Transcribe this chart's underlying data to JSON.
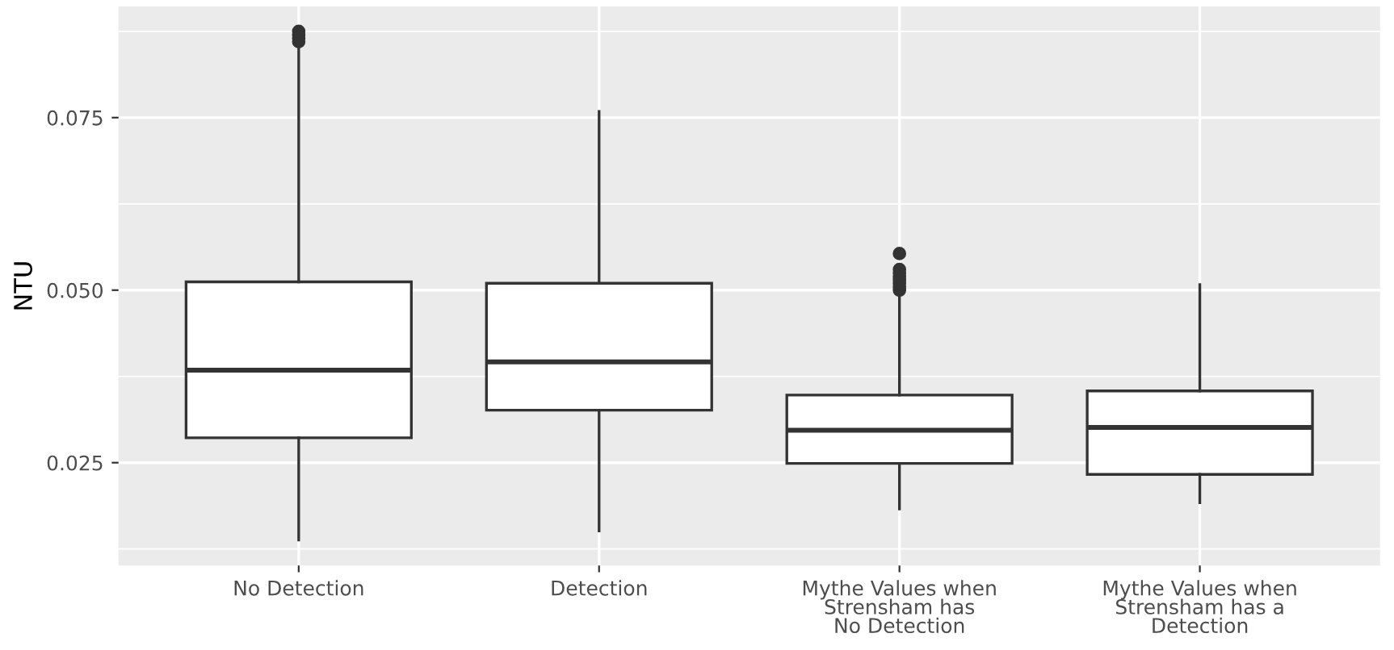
{
  "chart_data": {
    "type": "box",
    "ylabel": "NTU",
    "categories": [
      "No Detection",
      "Detection",
      "Mythe Values when\nStrensham has\nNo Detection",
      "Mythe Values when\nStrensham has a\nDetection"
    ],
    "boxes": [
      {
        "low": 0.0138,
        "q1": 0.0286,
        "median": 0.0384,
        "q3": 0.0512,
        "high": 0.0855,
        "outliers": [
          0.086,
          0.0865,
          0.087,
          0.0875
        ]
      },
      {
        "low": 0.0151,
        "q1": 0.0326,
        "median": 0.0396,
        "q3": 0.051,
        "high": 0.0759
      },
      {
        "low": 0.0183,
        "q1": 0.0249,
        "median": 0.0297,
        "q3": 0.0348,
        "high": 0.0494,
        "outliers": [
          0.05,
          0.0505,
          0.051,
          0.0515,
          0.052,
          0.0525,
          0.053,
          0.0553
        ]
      },
      {
        "low": 0.0192,
        "q1": 0.0233,
        "median": 0.0301,
        "q3": 0.0354,
        "high": 0.0508
      }
    ],
    "color": "#ffffff",
    "ylim": [
      0.0101,
      0.0911
    ],
    "yticks": [
      {
        "value": 0.025,
        "label": "0.025"
      },
      {
        "value": 0.05,
        "label": "0.050"
      },
      {
        "value": 0.075,
        "label": "0.075"
      }
    ],
    "grid": true
  }
}
